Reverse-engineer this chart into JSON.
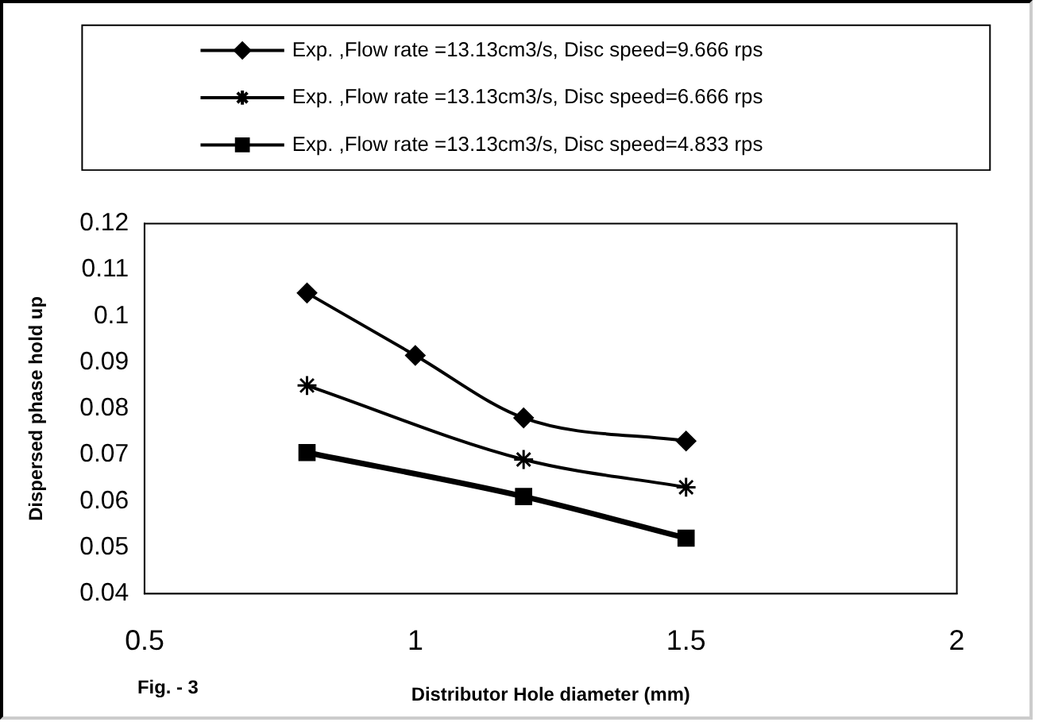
{
  "chart_data": {
    "type": "line",
    "xlabel": "Distributor Hole diameter (mm)",
    "ylabel": "Dispersed phase hold up",
    "annotations": [
      "Fig. - 3"
    ],
    "xlim": [
      0.5,
      2
    ],
    "xticks": [
      0.5,
      1,
      1.5,
      2
    ],
    "ylim": [
      0.04,
      0.12
    ],
    "yticks": [
      0.04,
      0.05,
      0.06,
      0.07,
      0.08,
      0.09,
      0.1,
      0.11,
      0.12
    ],
    "grid": false,
    "legend": "top",
    "series": [
      {
        "name": "Exp. ,Flow rate =13.13cm3/s, Disc speed=9.666 rps",
        "color": "#000000",
        "marker": "diamond",
        "x": [
          0.8,
          1,
          1.2,
          1.5
        ],
        "values": [
          0.105,
          0.0915,
          0.078,
          0.073
        ]
      },
      {
        "name": "Exp. ,Flow rate =13.13cm3/s, Disc speed=6.666 rps",
        "color": "#000000",
        "marker": "cross",
        "x": [
          0.8,
          1.2,
          1.5
        ],
        "values": [
          0.085,
          0.069,
          0.063
        ]
      },
      {
        "name": "Exp. ,Flow rate =13.13cm3/s, Disc speed=4.833 rps",
        "color": "#000000",
        "marker": "square",
        "x": [
          0.8,
          1.2,
          1.5
        ],
        "values": [
          0.0705,
          0.061,
          0.052
        ]
      }
    ]
  }
}
